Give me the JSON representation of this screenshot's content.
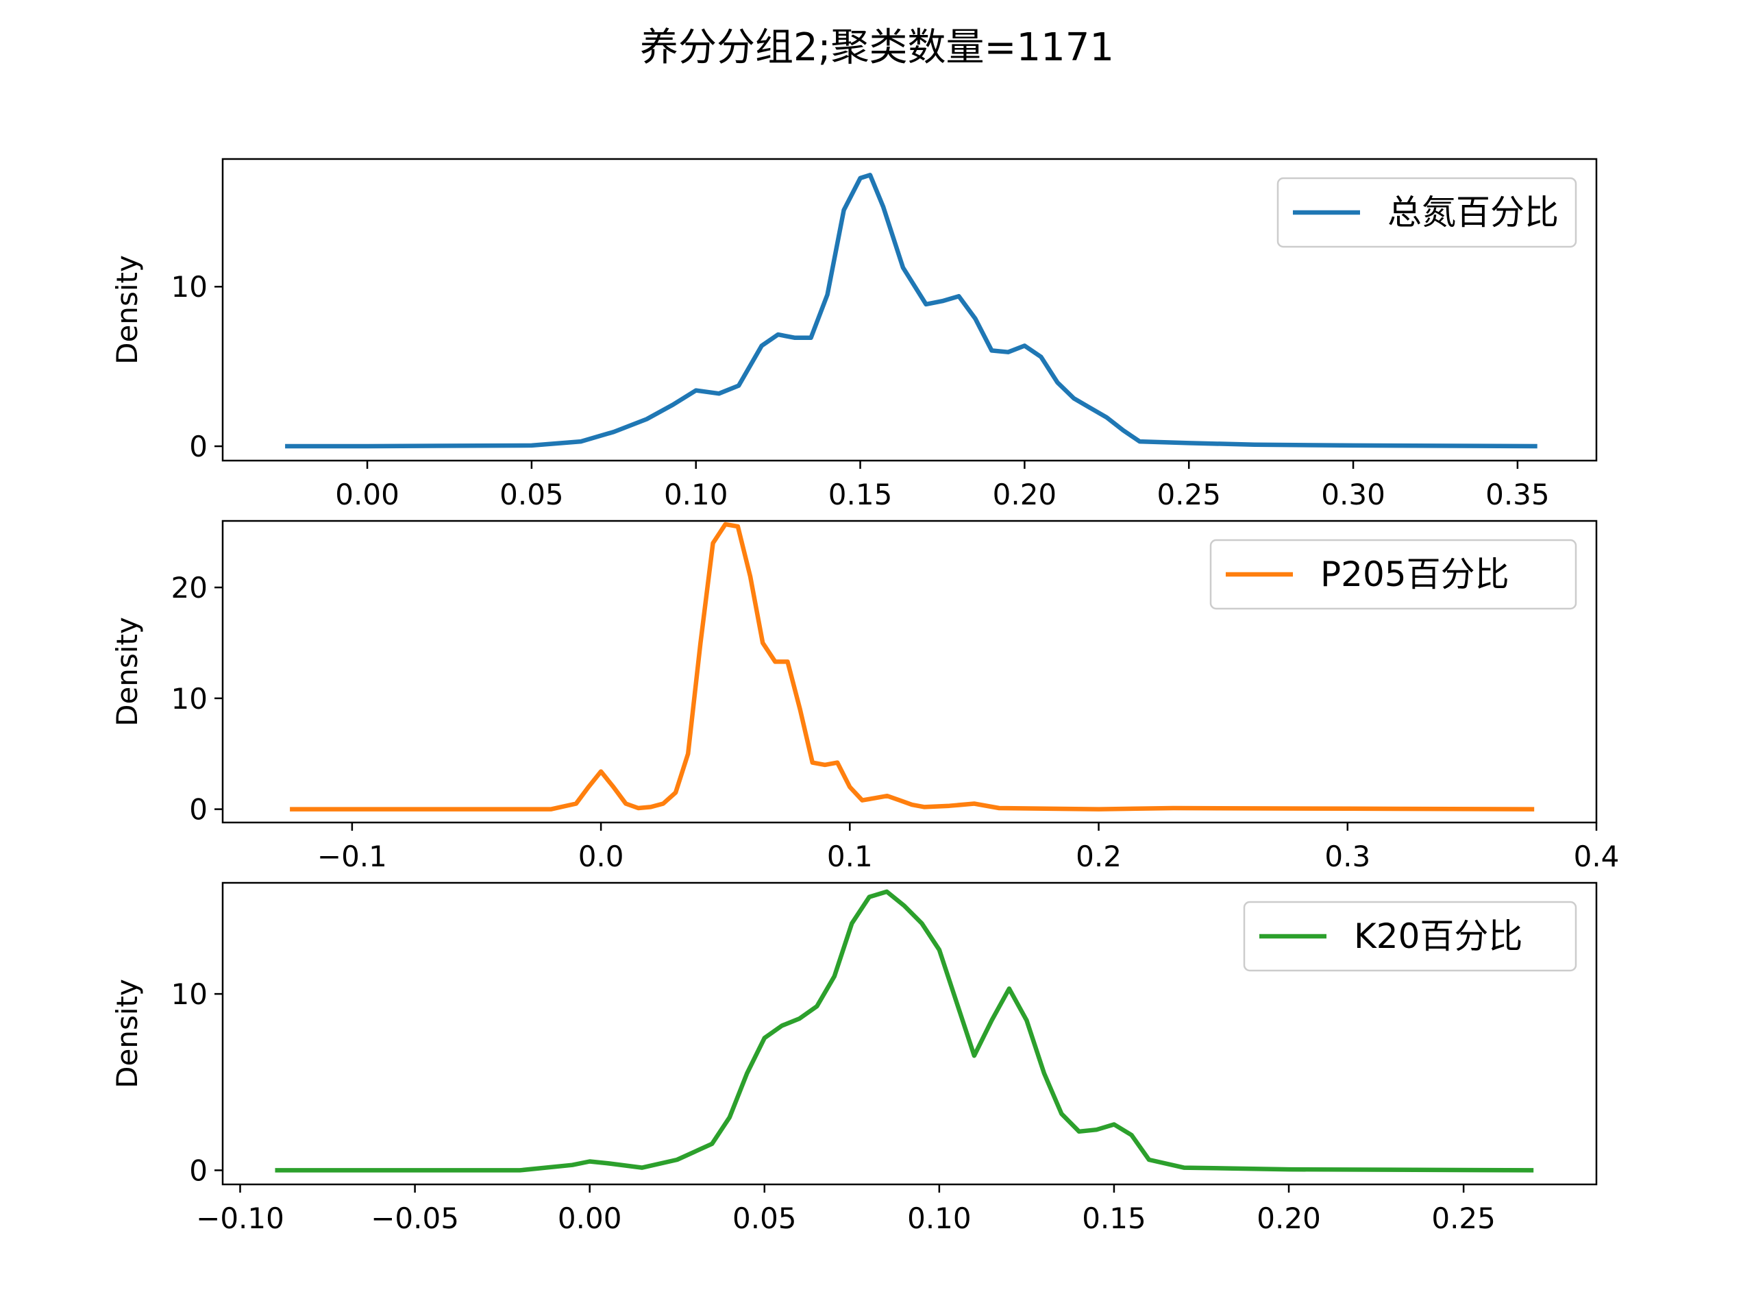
{
  "figure": {
    "title": "养分分组2;聚类数量=1171"
  },
  "chart_data": [
    {
      "type": "line",
      "series": [
        {
          "name": "总氮百分比",
          "color": "#1f77b4"
        }
      ],
      "ylabel": "Density",
      "xlim": [
        -0.044,
        0.374
      ],
      "ylim": [
        -0.9,
        18.0
      ],
      "xticks": [
        0.0,
        0.05,
        0.1,
        0.15,
        0.2,
        0.25,
        0.3,
        0.35
      ],
      "xtick_labels": [
        "0.00",
        "0.05",
        "0.10",
        "0.15",
        "0.20",
        "0.25",
        "0.30",
        "0.35"
      ],
      "yticks": [
        0,
        10
      ],
      "ytick_labels": [
        "0",
        "10"
      ],
      "legend": "upper right",
      "x": [
        -0.025,
        0.0,
        0.05,
        0.065,
        0.075,
        0.085,
        0.093,
        0.1,
        0.107,
        0.113,
        0.12,
        0.125,
        0.13,
        0.135,
        0.14,
        0.145,
        0.15,
        0.153,
        0.157,
        0.163,
        0.17,
        0.175,
        0.18,
        0.185,
        0.19,
        0.195,
        0.2,
        0.205,
        0.21,
        0.215,
        0.22,
        0.225,
        0.23,
        0.235,
        0.25,
        0.27,
        0.3,
        0.356
      ],
      "y": [
        0,
        0,
        0.05,
        0.3,
        0.9,
        1.7,
        2.6,
        3.5,
        3.3,
        3.8,
        6.3,
        7.0,
        6.8,
        6.8,
        9.5,
        14.8,
        16.8,
        17.0,
        15.0,
        11.2,
        8.9,
        9.1,
        9.4,
        8.0,
        6.0,
        5.9,
        6.3,
        5.6,
        4.0,
        3.0,
        2.4,
        1.8,
        1.0,
        0.3,
        0.2,
        0.1,
        0.05,
        0
      ]
    },
    {
      "type": "line",
      "series": [
        {
          "name": "P205百分比",
          "color": "#ff7f0e"
        }
      ],
      "ylabel": "Density",
      "xlim": [
        -0.152,
        0.4
      ],
      "ylim": [
        -1.2,
        26.0
      ],
      "xticks": [
        -0.1,
        0.0,
        0.1,
        0.2,
        0.3,
        0.4
      ],
      "xtick_labels": [
        "−0.1",
        "0.0",
        "0.1",
        "0.2",
        "0.3",
        "0.4"
      ],
      "yticks": [
        0,
        10,
        20
      ],
      "ytick_labels": [
        "0",
        "10",
        "20"
      ],
      "legend": "upper right",
      "x": [
        -0.125,
        -0.02,
        -0.01,
        -0.005,
        0.0,
        0.005,
        0.01,
        0.015,
        0.02,
        0.025,
        0.03,
        0.035,
        0.04,
        0.045,
        0.05,
        0.055,
        0.06,
        0.065,
        0.07,
        0.075,
        0.08,
        0.085,
        0.09,
        0.095,
        0.1,
        0.105,
        0.11,
        0.115,
        0.12,
        0.125,
        0.13,
        0.14,
        0.15,
        0.16,
        0.2,
        0.23,
        0.3,
        0.375
      ],
      "y": [
        0,
        0,
        0.5,
        2.0,
        3.4,
        2.0,
        0.5,
        0.1,
        0.2,
        0.5,
        1.5,
        5.0,
        15.0,
        24.0,
        25.7,
        25.5,
        21.0,
        15.0,
        13.3,
        13.3,
        9.0,
        4.2,
        4.0,
        4.2,
        2.0,
        0.8,
        1.0,
        1.2,
        0.8,
        0.4,
        0.2,
        0.3,
        0.5,
        0.1,
        0.0,
        0.1,
        0.05,
        0
      ]
    },
    {
      "type": "line",
      "series": [
        {
          "name": "K20百分比",
          "color": "#2ca02c"
        }
      ],
      "ylabel": "Density",
      "xlim": [
        -0.105,
        0.288
      ],
      "ylim": [
        -0.8,
        16.3
      ],
      "xticks": [
        -0.1,
        -0.05,
        0.0,
        0.05,
        0.1,
        0.15,
        0.2,
        0.25
      ],
      "xtick_labels": [
        "−0.10",
        "−0.05",
        "0.00",
        "0.05",
        "0.10",
        "0.15",
        "0.20",
        "0.25"
      ],
      "yticks": [
        0,
        10
      ],
      "ytick_labels": [
        "0",
        "10"
      ],
      "legend": "upper right",
      "x": [
        -0.09,
        -0.02,
        -0.005,
        0.0,
        0.005,
        0.015,
        0.025,
        0.035,
        0.04,
        0.045,
        0.05,
        0.055,
        0.06,
        0.065,
        0.07,
        0.075,
        0.08,
        0.085,
        0.09,
        0.095,
        0.1,
        0.105,
        0.11,
        0.115,
        0.12,
        0.125,
        0.13,
        0.135,
        0.14,
        0.145,
        0.15,
        0.155,
        0.16,
        0.17,
        0.2,
        0.27
      ],
      "y": [
        0,
        0,
        0.3,
        0.5,
        0.4,
        0.15,
        0.6,
        1.5,
        3.0,
        5.5,
        7.5,
        8.2,
        8.6,
        9.3,
        11.0,
        14.0,
        15.5,
        15.8,
        15.0,
        14.0,
        12.5,
        9.5,
        6.5,
        8.5,
        10.3,
        8.5,
        5.5,
        3.2,
        2.2,
        2.3,
        2.6,
        2.0,
        0.6,
        0.15,
        0.05,
        0
      ]
    }
  ]
}
